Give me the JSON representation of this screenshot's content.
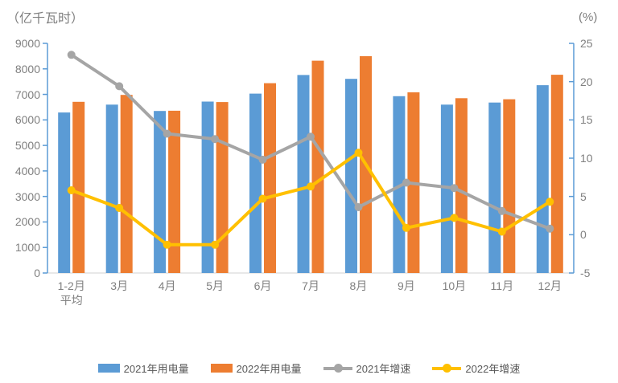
{
  "colors": {
    "axis_line": "#5B9BD5",
    "baseline": "#D9D9D9",
    "tick_label": "#808080",
    "title_text": "#7F7F7F",
    "legend_text": "#595959",
    "background": "#FFFFFF"
  },
  "chart_data": {
    "type": "bar",
    "subtype": "combo-bar-line",
    "title": "",
    "left_axis": {
      "title": "（亿千瓦时）",
      "min": 0,
      "max": 9000,
      "step": 1000,
      "ticks": [
        9000,
        8000,
        7000,
        6000,
        5000,
        4000,
        3000,
        2000,
        1000,
        0
      ]
    },
    "right_axis": {
      "title": "(%)",
      "min": -5,
      "max": 25,
      "step": 5,
      "ticks": [
        25,
        20,
        15,
        10,
        5,
        0,
        -5
      ]
    },
    "categories": [
      "1-2月\n平均",
      "3月",
      "4月",
      "5月",
      "6月",
      "7月",
      "8月",
      "9月",
      "10月",
      "11月",
      "12月"
    ],
    "grid": false,
    "legend_position": "bottom",
    "series": [
      {
        "name": "2021年用电量",
        "type": "bar",
        "axis": "left",
        "color": "#5B9BD5",
        "values": [
          6290,
          6600,
          6350,
          6720,
          7030,
          7760,
          7610,
          6930,
          6600,
          6680,
          7360
        ]
      },
      {
        "name": "2022年用电量",
        "type": "bar",
        "axis": "left",
        "color": "#ED7D31",
        "values": [
          6710,
          6980,
          6360,
          6700,
          7440,
          8320,
          8500,
          7080,
          6850,
          6810,
          7770
        ]
      },
      {
        "name": "2021年增速",
        "type": "line",
        "axis": "right",
        "color": "#A5A5A5",
        "values": [
          23.5,
          19.4,
          13.2,
          12.5,
          9.8,
          12.8,
          3.6,
          6.8,
          6.1,
          3.1,
          0.8
        ]
      },
      {
        "name": "2022年增速",
        "type": "line",
        "axis": "right",
        "color": "#FFC000",
        "values": [
          5.8,
          3.5,
          -1.3,
          -1.3,
          4.7,
          6.3,
          10.7,
          0.9,
          2.2,
          0.4,
          4.3
        ]
      }
    ]
  }
}
